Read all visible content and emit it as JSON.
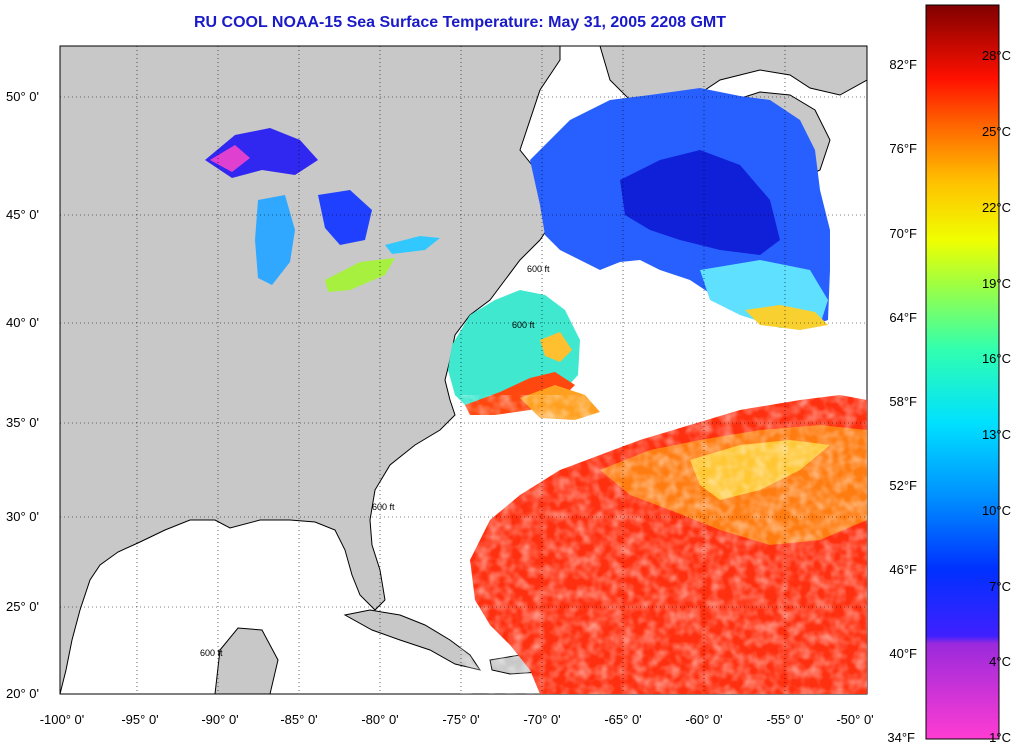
{
  "title": "RU COOL  NOAA-15  Sea Surface Temperature:  May 31, 2005 2208 GMT",
  "map": {
    "lat_ticks": [
      "50° 0'",
      "45° 0'",
      "40° 0'",
      "35° 0'",
      "30° 0'",
      "25° 0'",
      "20° 0'"
    ],
    "lon_ticks": [
      "-100° 0'",
      "-95° 0'",
      "-90° 0'",
      "-85° 0'",
      "-80° 0'",
      "-75° 0'",
      "-70° 0'",
      "-65° 0'",
      "-60° 0'",
      "-55° 0'",
      "-50° 0'"
    ],
    "lat_range": [
      20,
      52.5
    ],
    "lon_range": [
      -100,
      -49.5
    ],
    "contour_label": "600 ft",
    "land_color": "#c8c8c8",
    "grid": true
  },
  "colorbar": {
    "fahrenheit_labels": [
      "82°F",
      "76°F",
      "70°F",
      "64°F",
      "58°F",
      "52°F",
      "46°F",
      "40°F",
      "34°F"
    ],
    "celsius_labels": [
      "28°C",
      "25°C",
      "22°C",
      "19°C",
      "16°C",
      "13°C",
      "10°C",
      "7°C",
      "4°C",
      "1°C"
    ]
  }
}
